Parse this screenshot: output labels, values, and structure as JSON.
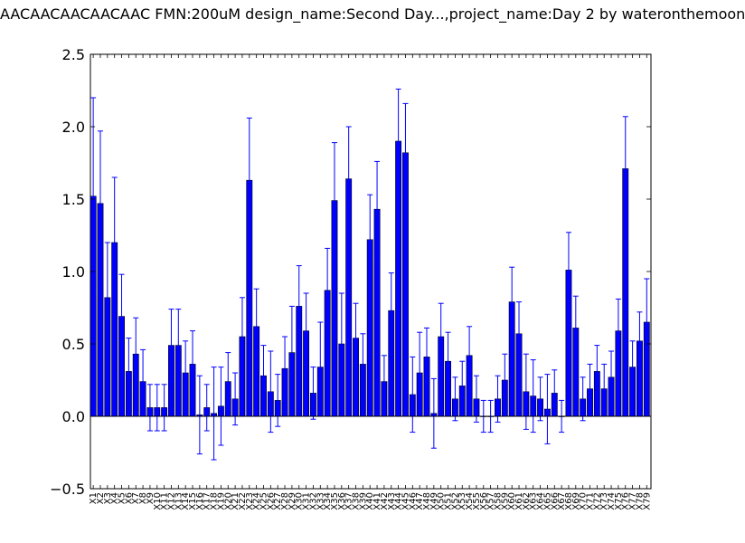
{
  "chart_data": {
    "type": "bar",
    "title": "AACAACAACAACAAC  FMN:200uM  design_name:Second Day...,project_name:Day 2 by wateronthemoon",
    "xlabel": "",
    "ylabel": "",
    "ylim": [
      -0.5,
      2.5
    ],
    "yticks": [
      -0.5,
      0.0,
      0.5,
      1.0,
      1.5,
      2.0,
      2.5
    ],
    "ytick_labels": [
      "−0.5",
      "0.0",
      "0.5",
      "1.0",
      "1.5",
      "2.0",
      "2.5"
    ],
    "grid": false,
    "bar_color": "#0000ff",
    "error_color": "#0000ff",
    "categories": [
      "X1",
      "X2",
      "X3",
      "X4",
      "X5",
      "X6",
      "X7",
      "X8",
      "X9",
      "X10",
      "X11",
      "X12",
      "X13",
      "X14",
      "X15",
      "X16",
      "X17",
      "X18",
      "X19",
      "X20",
      "X21",
      "X22",
      "X23",
      "X24",
      "X25",
      "X26",
      "X27",
      "X28",
      "X29",
      "X30",
      "X31",
      "X32",
      "X33",
      "X34",
      "X35",
      "X36",
      "X37",
      "X38",
      "X39",
      "X40",
      "X41",
      "X42",
      "X43",
      "X44",
      "X45",
      "X46",
      "X47",
      "X48",
      "X49",
      "X50",
      "X51",
      "X52",
      "X53",
      "X54",
      "X55",
      "X56",
      "X57",
      "X58",
      "X59",
      "X60",
      "X61",
      "X62",
      "X63",
      "X64",
      "X65",
      "X66",
      "X67",
      "X68",
      "X69",
      "X70",
      "X71",
      "X72",
      "X73",
      "X74",
      "X75",
      "X76",
      "X77",
      "X78",
      "X79"
    ],
    "values": [
      1.52,
      1.47,
      0.82,
      1.2,
      0.69,
      0.31,
      0.43,
      0.24,
      0.06,
      0.06,
      0.06,
      0.49,
      0.49,
      0.3,
      0.36,
      0.01,
      0.06,
      0.02,
      0.07,
      0.24,
      0.12,
      0.55,
      1.63,
      0.62,
      0.28,
      0.17,
      0.11,
      0.33,
      0.44,
      0.76,
      0.59,
      0.16,
      0.34,
      0.87,
      1.49,
      0.5,
      1.64,
      0.54,
      0.36,
      1.22,
      1.43,
      0.24,
      0.73,
      1.9,
      1.82,
      0.15,
      0.3,
      0.41,
      0.02,
      0.55,
      0.38,
      0.12,
      0.21,
      0.42,
      0.12,
      0.0,
      0.0,
      0.12,
      0.25,
      0.79,
      0.57,
      0.17,
      0.14,
      0.12,
      0.05,
      0.16,
      0.0,
      1.01,
      0.61,
      0.12,
      0.19,
      0.31,
      0.19,
      0.27,
      0.59,
      1.71,
      0.34,
      0.52,
      0.65
    ],
    "errors": [
      0.68,
      0.5,
      0.38,
      0.45,
      0.29,
      0.23,
      0.25,
      0.22,
      0.16,
      0.16,
      0.16,
      0.25,
      0.25,
      0.22,
      0.23,
      0.27,
      0.16,
      0.32,
      0.27,
      0.2,
      0.18,
      0.27,
      0.43,
      0.26,
      0.21,
      0.28,
      0.18,
      0.22,
      0.32,
      0.28,
      0.26,
      0.18,
      0.31,
      0.29,
      0.4,
      0.35,
      0.36,
      0.24,
      0.21,
      0.31,
      0.33,
      0.18,
      0.26,
      0.36,
      0.34,
      0.26,
      0.28,
      0.2,
      0.24,
      0.23,
      0.2,
      0.15,
      0.17,
      0.2,
      0.16,
      0.11,
      0.11,
      0.16,
      0.18,
      0.24,
      0.22,
      0.26,
      0.25,
      0.15,
      0.24,
      0.16,
      0.11,
      0.26,
      0.22,
      0.15,
      0.17,
      0.18,
      0.17,
      0.18,
      0.22,
      0.36,
      0.18,
      0.2,
      0.3
    ]
  }
}
